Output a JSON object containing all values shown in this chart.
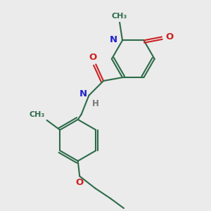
{
  "bg_color": "#ebebeb",
  "bond_color": "#2d6b4a",
  "N_color": "#2222cc",
  "O_color": "#cc2222",
  "lw": 1.5,
  "fs": 8.5,
  "xlim": [
    0.0,
    5.5
  ],
  "ylim": [
    -0.5,
    5.5
  ]
}
